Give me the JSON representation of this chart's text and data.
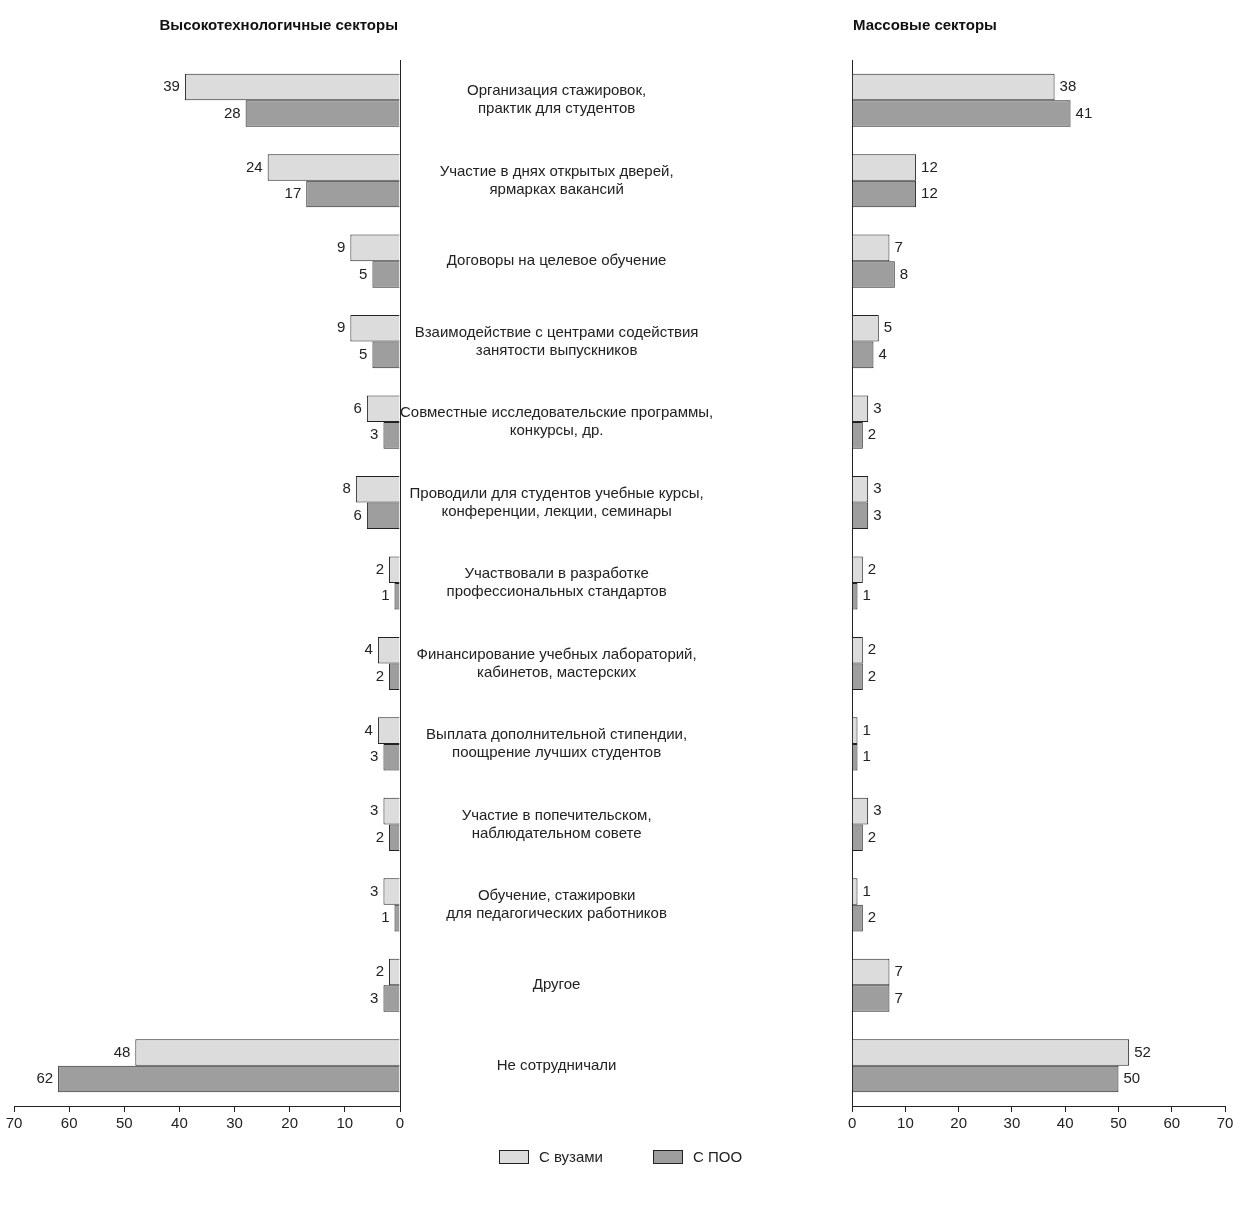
{
  "chart_data": [
    {
      "type": "bar",
      "orientation": "horizontal",
      "title": "Высокотехнологичные секторы",
      "categories": [
        "Организация стажировок,\nпрактик для студентов",
        "Участие в днях открытых дверей,\nярмарках вакансий",
        "Договоры на целевое обучение",
        "Взаимодействие с центрами содействия\nзанятости выпускников",
        "Совместные исследовательские программы,\nконкурсы, др.",
        "Проводили для студентов учебные курсы,\nконференции, лекции, семинары",
        "Участвовали в разработке\nпрофессиональных стандартов",
        "Финансирование учебных лабораторий,\nкабинетов, мастерских",
        "Выплата дополнительной стипендии,\nпоощрение лучших студентов",
        "Участие в попечительском,\nнаблюдательном совете",
        "Обучение, стажировки\nдля педагогических работников",
        "Другое",
        "Не сотрудничали"
      ],
      "series": [
        {
          "color": "#dcdcdc",
          "values": [
            39,
            24,
            9,
            9,
            6,
            8,
            2,
            4,
            4,
            3,
            3,
            2,
            48
          ]
        },
        {
          "color": "#9e9e9e",
          "values": [
            28,
            17,
            5,
            5,
            3,
            6,
            1,
            2,
            3,
            2,
            1,
            3,
            62
          ]
        }
      ],
      "xlim": [
        70,
        0
      ],
      "xticks": [
        70,
        60,
        50,
        40,
        30,
        20,
        10,
        0
      ],
      "data_labels": true,
      "grid": false
    },
    {
      "type": "bar",
      "orientation": "horizontal",
      "title": "Массовые секторы",
      "categories": [
        null,
        null,
        null,
        null,
        null,
        null,
        null,
        null,
        null,
        null,
        null,
        null,
        null
      ],
      "series": [
        {
          "name": "С вузами",
          "color": "#dcdcdc",
          "values": [
            38,
            12,
            7,
            5,
            3,
            3,
            2,
            2,
            1,
            3,
            1,
            7,
            52
          ]
        },
        {
          "name": "С ПОО",
          "color": "#9e9e9e",
          "values": [
            41,
            12,
            8,
            4,
            2,
            3,
            1,
            2,
            1,
            2,
            2,
            7,
            50
          ]
        }
      ],
      "xlim": [
        0,
        70
      ],
      "xticks": [
        0,
        10,
        20,
        30,
        40,
        50,
        60,
        70
      ],
      "data_labels": true,
      "grid": false,
      "legend": "bottom"
    }
  ]
}
